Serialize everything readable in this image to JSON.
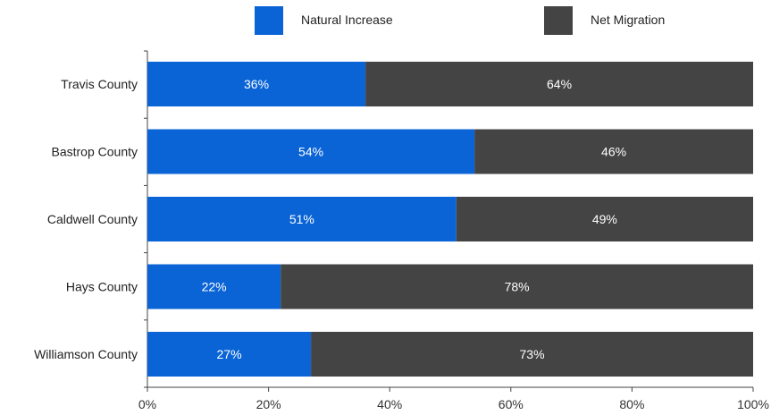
{
  "chart_data": {
    "type": "bar",
    "orientation": "horizontal",
    "stacked": true,
    "categories": [
      "Travis County",
      "Bastrop County",
      "Caldwell County",
      "Hays County",
      "Williamson County"
    ],
    "series": [
      {
        "name": "Natural Increase",
        "color": "#0a64d6",
        "values": [
          36,
          54,
          51,
          22,
          27
        ],
        "labels": [
          "36%",
          "54%",
          "51%",
          "22%",
          "27%"
        ]
      },
      {
        "name": "Net Migration",
        "color": "#444444",
        "values": [
          64,
          46,
          49,
          78,
          73
        ],
        "labels": [
          "64%",
          "46%",
          "49%",
          "78%",
          "73%"
        ]
      }
    ],
    "xlim": [
      0,
      100
    ],
    "x_ticks": [
      0,
      20,
      40,
      60,
      80,
      100
    ],
    "x_tick_labels": [
      "0%",
      "20%",
      "40%",
      "60%",
      "80%",
      "100%"
    ],
    "legend_position": "top",
    "grid": false,
    "title": "",
    "xlabel": "",
    "ylabel": ""
  }
}
